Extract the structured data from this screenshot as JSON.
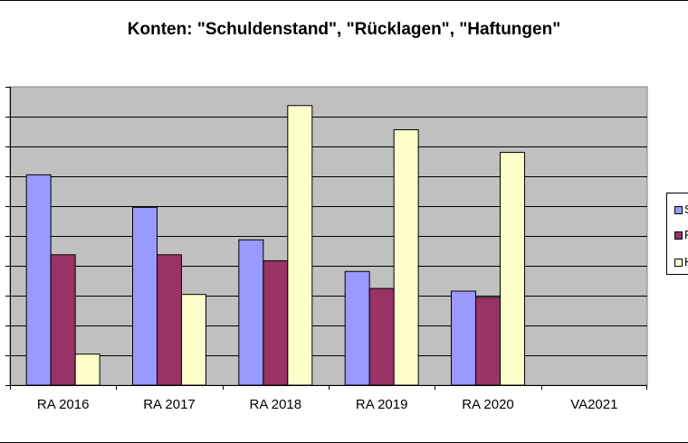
{
  "chart_data": {
    "type": "bar",
    "title": "Konten: \"Schuldenstand\", \"Rücklagen\", \"Haftungen\"",
    "categories": [
      "RA 2016",
      "RA 2017",
      "RA 2018",
      "RA 2019",
      "RA 2020",
      "VA2021"
    ],
    "series": [
      {
        "color": "#9999ff",
        "values": [
          7.05,
          5.96,
          4.87,
          3.81,
          3.15,
          null
        ]
      },
      {
        "color": "#993366",
        "values": [
          4.37,
          4.37,
          4.17,
          3.24,
          2.94,
          null
        ]
      },
      {
        "color": "#ffffcc",
        "values": [
          1.04,
          3.04,
          9.37,
          8.56,
          7.8,
          null
        ]
      }
    ],
    "legend_labels": [
      "S",
      "R",
      "H"
    ],
    "ylim": [
      0,
      10
    ],
    "y_tick_count": 11,
    "grid": true,
    "legend_position": "right",
    "plot_background": "#c0c0c0"
  }
}
